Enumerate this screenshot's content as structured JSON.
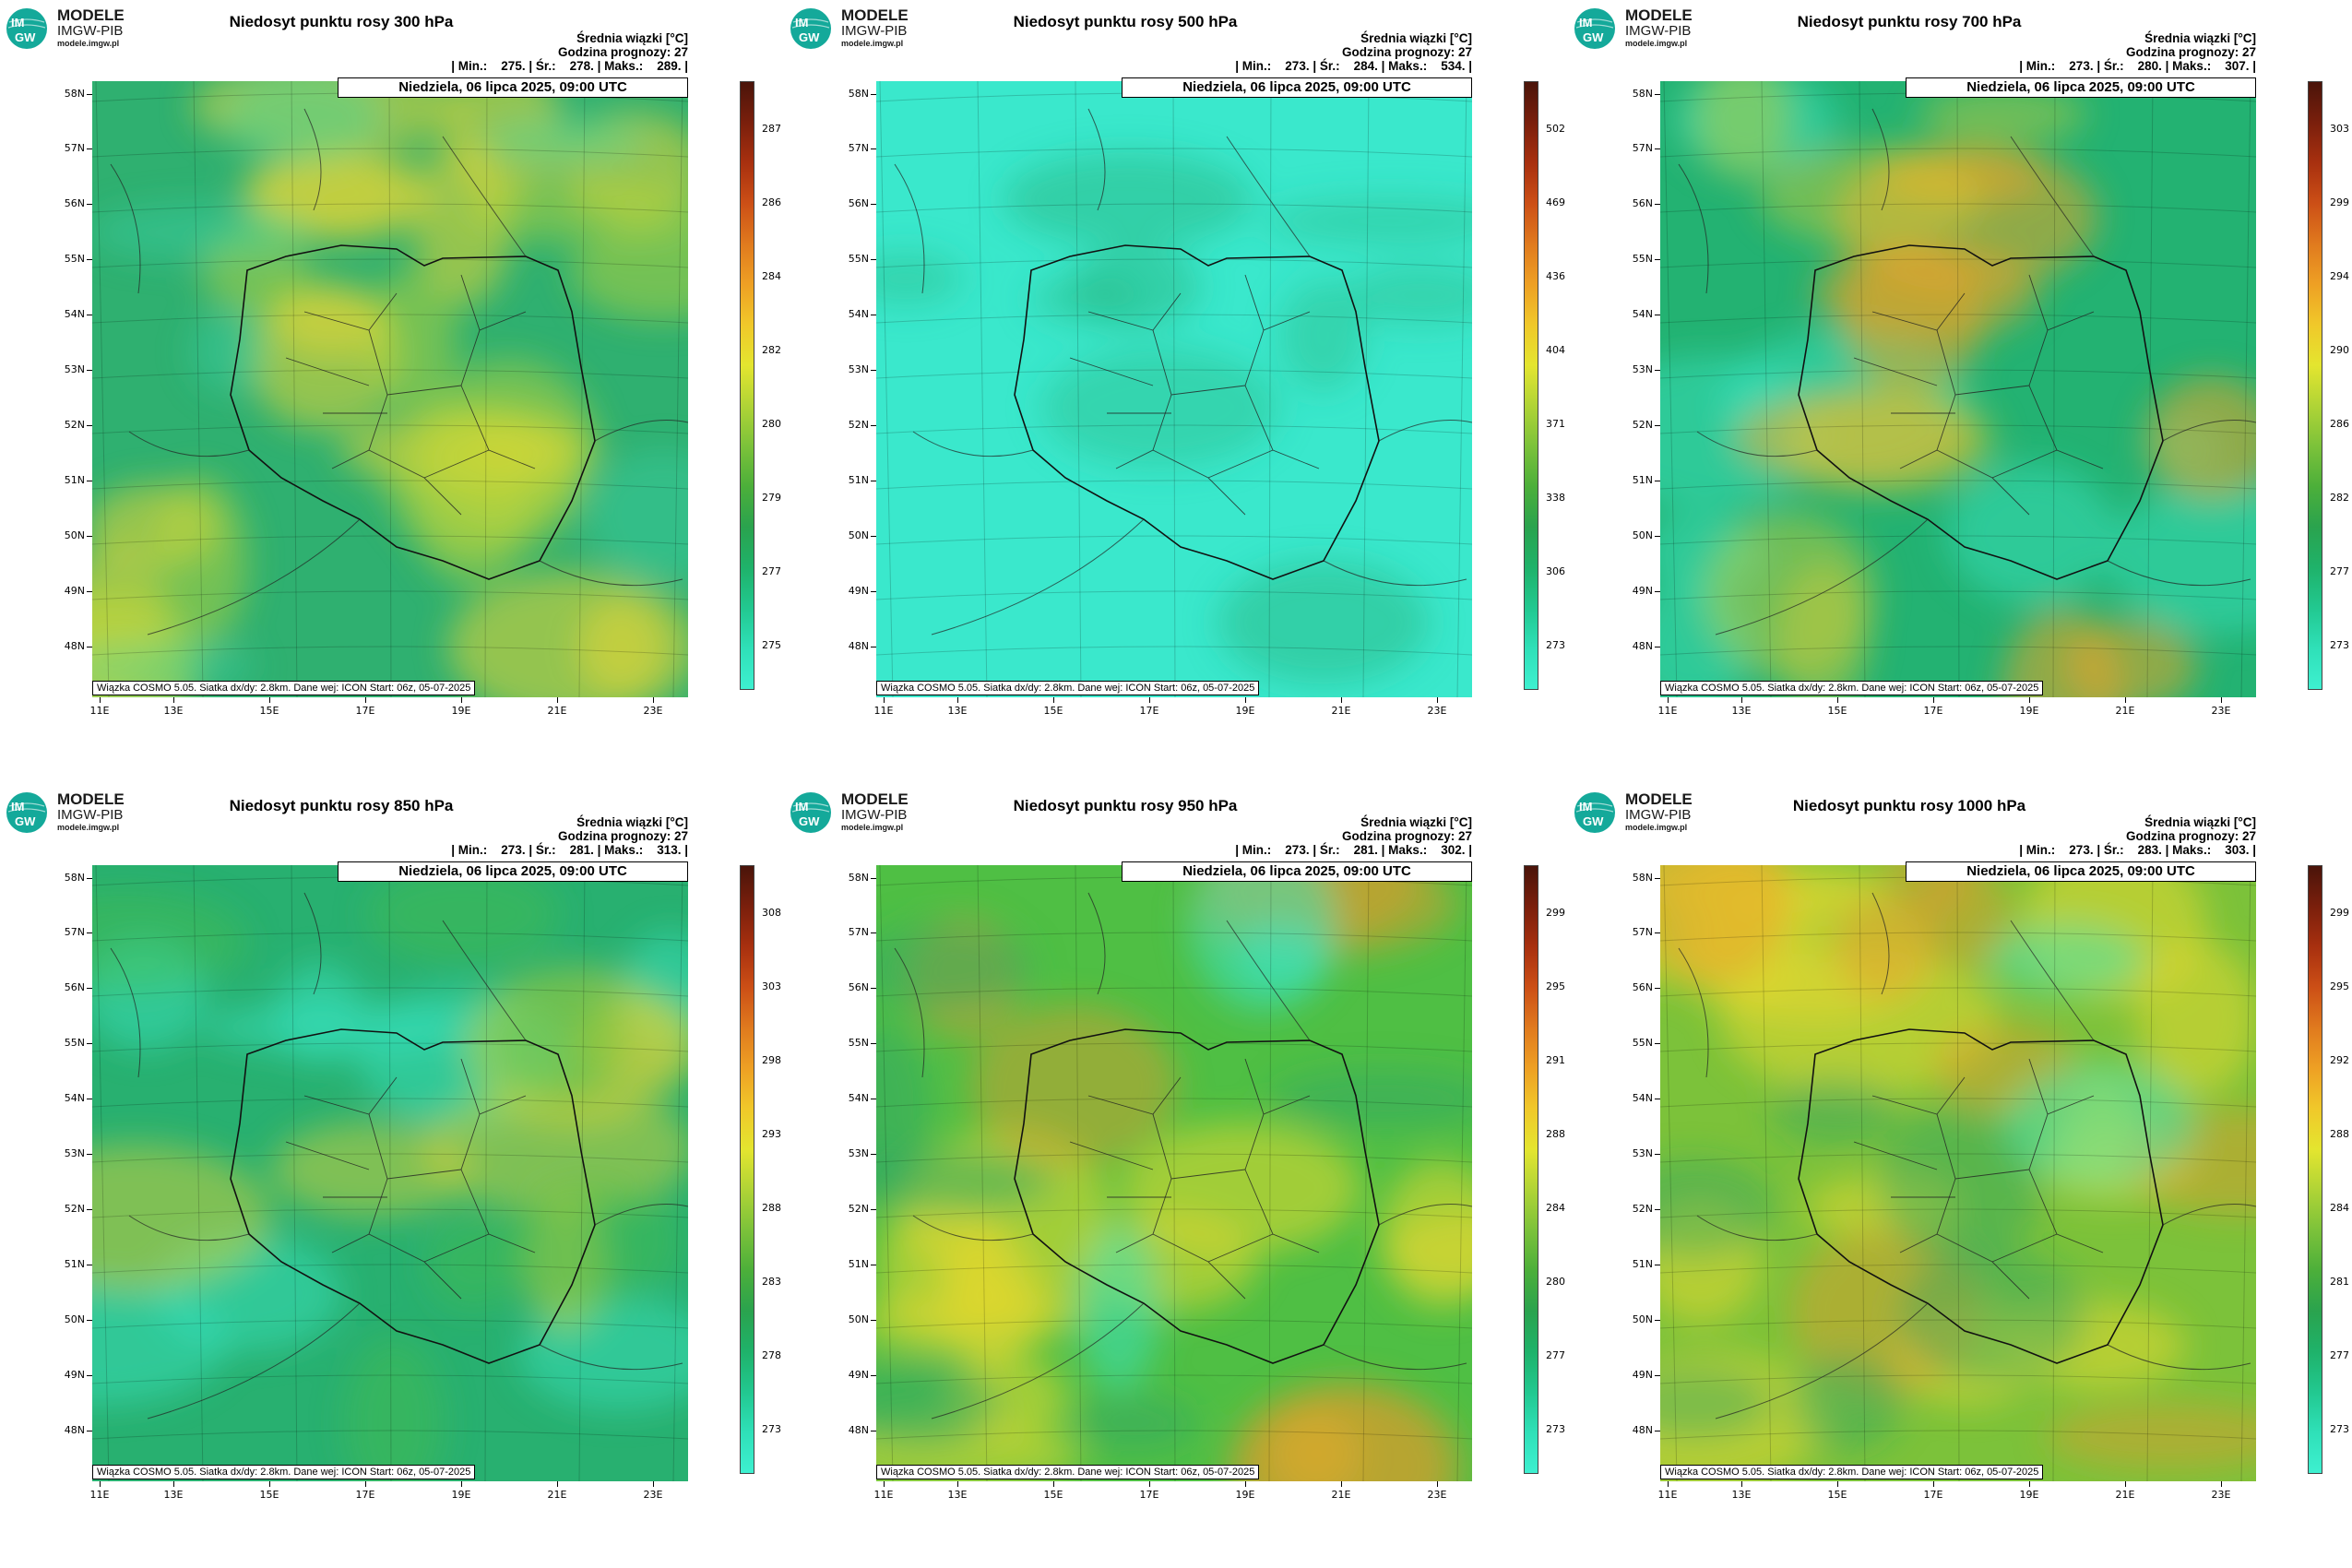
{
  "logo": {
    "name": "MODELE",
    "org": "IMGW-PIB",
    "url": "modele.imgw.pl",
    "mark": "IM GW",
    "mark_color": "#14a99a"
  },
  "common": {
    "date": "Niedziela, 06 lipca 2025, 09:00 UTC",
    "footer": "Wiązka COSMO 5.05. Siatka dx/dy: 2.8km. Dane wej: ICON Start: 06z, 05-07-2025",
    "stats_header": "Średnia wiązki [°C]",
    "forecast_hour": "Godzina prognozy: 27",
    "lat_labels": [
      "58N",
      "57N",
      "56N",
      "55N",
      "54N",
      "53N",
      "52N",
      "51N",
      "50N",
      "49N",
      "48N"
    ],
    "lon_labels": [
      "11E",
      "13E",
      "15E",
      "17E",
      "19E",
      "21E",
      "23E"
    ]
  },
  "colors": {
    "colorbar": [
      "#3ef0d0",
      "#2fe0b8",
      "#22c890",
      "#1fb26a",
      "#2aa34e",
      "#4caf3a",
      "#7cc23a",
      "#b0d436",
      "#e4e52f",
      "#f0c82a",
      "#eea024",
      "#e07a1e",
      "#cc4f16",
      "#a8300f",
      "#7a1f0c",
      "#4a140a"
    ]
  },
  "panels": [
    {
      "title": "Niedosyt punktu rosy 300 hPa",
      "stats": "| Min.:    275. | Śr.:    278. | Maks.:    289. |",
      "cb_ticks": [
        "287",
        "286",
        "284",
        "282",
        "280",
        "279",
        "277",
        "275"
      ]
    },
    {
      "title": "Niedosyt punktu rosy 500 hPa",
      "stats": "| Min.:    273. | Śr.:    284. | Maks.:    534. |",
      "cb_ticks": [
        "502",
        "469",
        "436",
        "404",
        "371",
        "338",
        "306",
        "273"
      ]
    },
    {
      "title": "Niedosyt punktu rosy 700 hPa",
      "stats": "| Min.:    273. | Śr.:    280. | Maks.:    307. |",
      "cb_ticks": [
        "303",
        "299",
        "294",
        "290",
        "286",
        "282",
        "277",
        "273"
      ]
    },
    {
      "title": "Niedosyt punktu rosy 850 hPa",
      "stats": "| Min.:    273. | Śr.:    281. | Maks.:    313. |",
      "cb_ticks": [
        "308",
        "303",
        "298",
        "293",
        "288",
        "283",
        "278",
        "273"
      ]
    },
    {
      "title": "Niedosyt punktu rosy 950 hPa",
      "stats": "| Min.:    273. | Śr.:    281. | Maks.:    302. |",
      "cb_ticks": [
        "299",
        "295",
        "291",
        "288",
        "284",
        "280",
        "277",
        "273"
      ]
    },
    {
      "title": "Niedosyt punktu rosy 1000 hPa",
      "stats": "| Min.:    273. | Śr.:    283. | Maks.:    303. |",
      "cb_ticks": [
        "299",
        "295",
        "292",
        "288",
        "284",
        "281",
        "277",
        "273"
      ]
    }
  ]
}
